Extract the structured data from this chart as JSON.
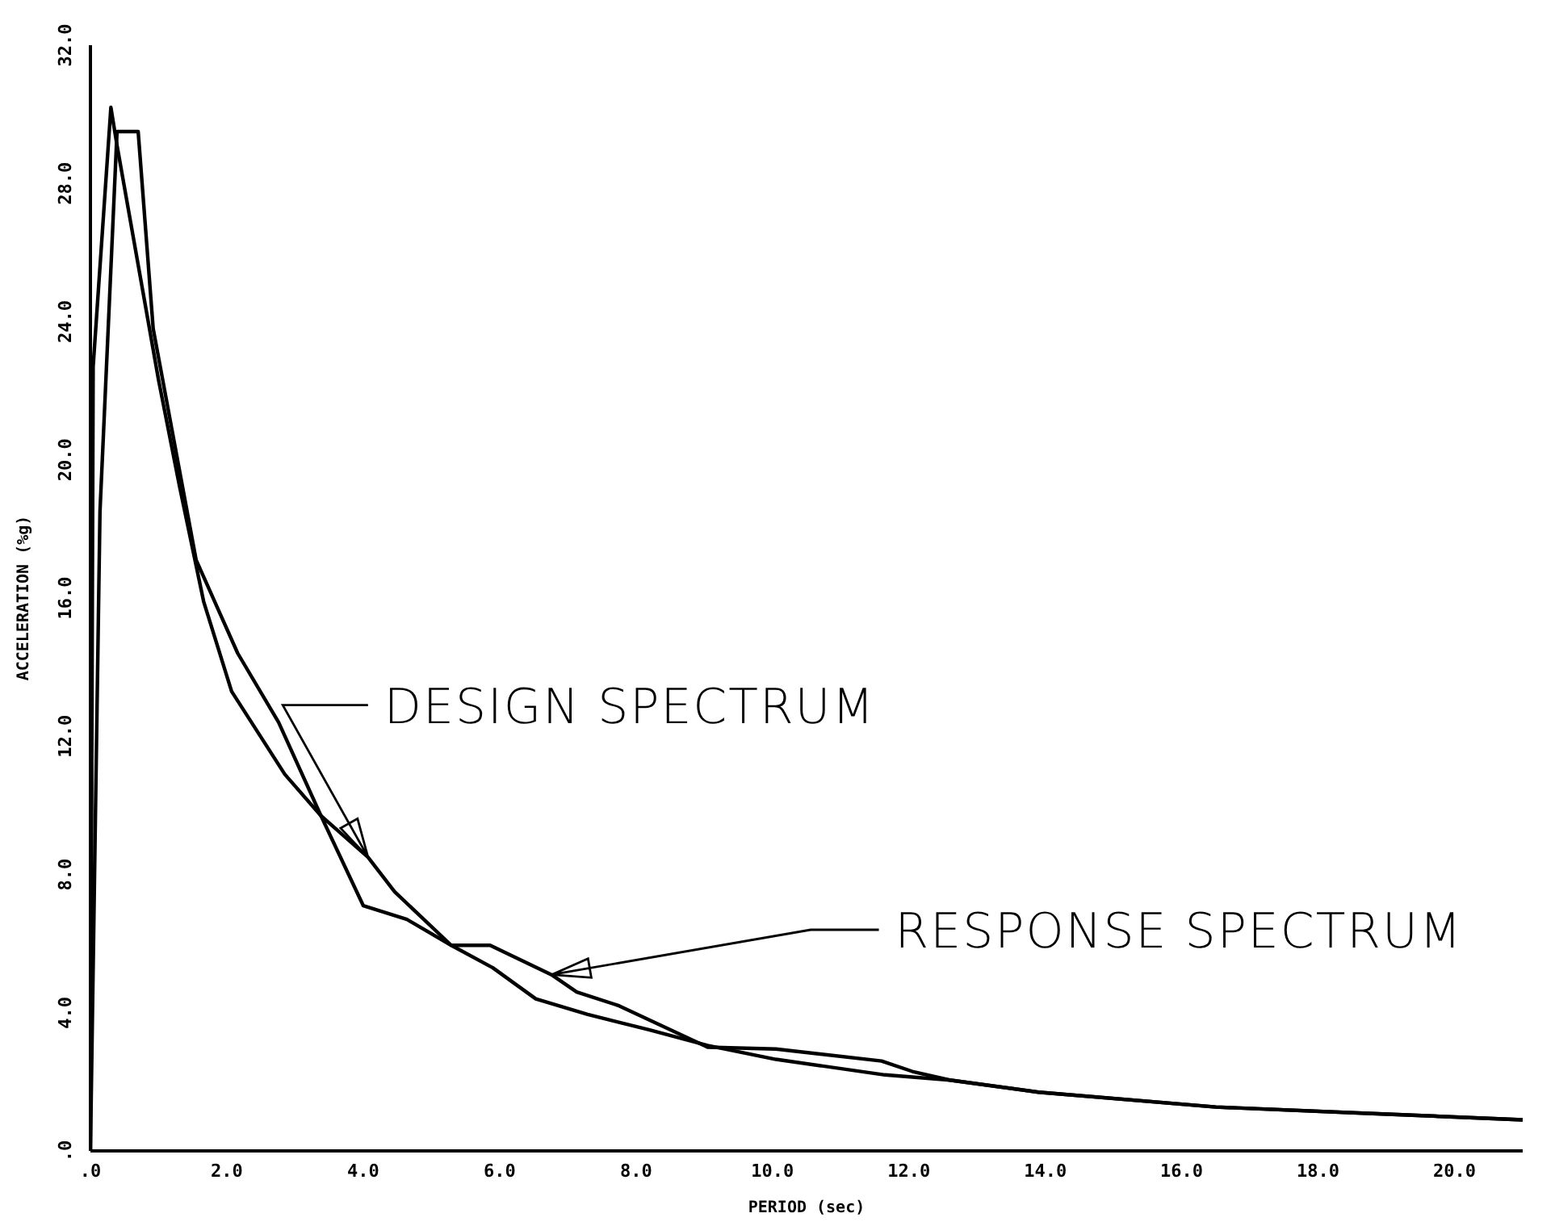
{
  "chart_data": {
    "type": "line",
    "xlabel": "PERIOD (sec)",
    "ylabel": "ACCELERATION (%g)",
    "xlim": [
      0,
      21
    ],
    "ylim": [
      0,
      32
    ],
    "xticks": [
      {
        "value": 0,
        "label": ".0"
      },
      {
        "value": 2,
        "label": "2.0"
      },
      {
        "value": 4,
        "label": "4.0"
      },
      {
        "value": 6,
        "label": "6.0"
      },
      {
        "value": 8,
        "label": "8.0"
      },
      {
        "value": 10,
        "label": "10.0"
      },
      {
        "value": 12,
        "label": "12.0"
      },
      {
        "value": 14,
        "label": "14.0"
      },
      {
        "value": 16,
        "label": "16.0"
      },
      {
        "value": 18,
        "label": "18.0"
      },
      {
        "value": 20,
        "label": "20.0"
      }
    ],
    "yticks": [
      {
        "value": 0,
        "label": ".0"
      },
      {
        "value": 4,
        "label": "4.0"
      },
      {
        "value": 8,
        "label": "8.0"
      },
      {
        "value": 12,
        "label": "12.0"
      },
      {
        "value": 16,
        "label": "16.0"
      },
      {
        "value": 20,
        "label": "20.0"
      },
      {
        "value": 24,
        "label": "24.0"
      },
      {
        "value": 28,
        "label": "28.0"
      },
      {
        "value": 32,
        "label": "32.0"
      }
    ],
    "marker": "none",
    "line_style": "solid",
    "series": [
      {
        "color": "#000000",
        "x": [
          0,
          0.04,
          0.3,
          0.39,
          1.0,
          1.31,
          1.66,
          2.07,
          2.85,
          3.38,
          4.07,
          4.46,
          5.29,
          5.9,
          6.53,
          7.29,
          8.2,
          9.05,
          10.05,
          11.65,
          12.6,
          13.9,
          16.5,
          18.8,
          21
        ],
        "values": [
          0,
          22.7,
          30.2,
          29.1,
          22.3,
          19.2,
          15.9,
          13.3,
          10.9,
          9.7,
          8.5,
          7.5,
          5.95,
          5.3,
          4.4,
          3.95,
          3.5,
          3.05,
          2.65,
          2.2,
          2.05,
          1.7,
          1.27,
          1.08,
          0.9
        ]
      },
      {
        "color": "#000000",
        "x": [
          0,
          0.14,
          0.39,
          0.7,
          0.92,
          1.55,
          2.16,
          2.76,
          3.38,
          4.0,
          4.64,
          5.29,
          5.86,
          6.76,
          7.13,
          7.75,
          9.05,
          10.05,
          11.6,
          12.05,
          12.6,
          13.9,
          16.5,
          18.8,
          21
        ],
        "values": [
          0,
          18.5,
          29.5,
          29.5,
          23.8,
          17.1,
          14.4,
          12.4,
          9.7,
          7.1,
          6.7,
          5.95,
          5.95,
          5.1,
          4.6,
          4.2,
          3.0,
          2.95,
          2.6,
          2.3,
          2.05,
          1.7,
          1.27,
          1.08,
          0.9
        ]
      }
    ],
    "annotations": [
      {
        "text": "DESIGN SPECTRUM",
        "x": 4.07,
        "y": 8.5
      },
      {
        "text": "RESPONSE SPECTRUM",
        "x": 6.76,
        "y": 5.1
      }
    ]
  }
}
